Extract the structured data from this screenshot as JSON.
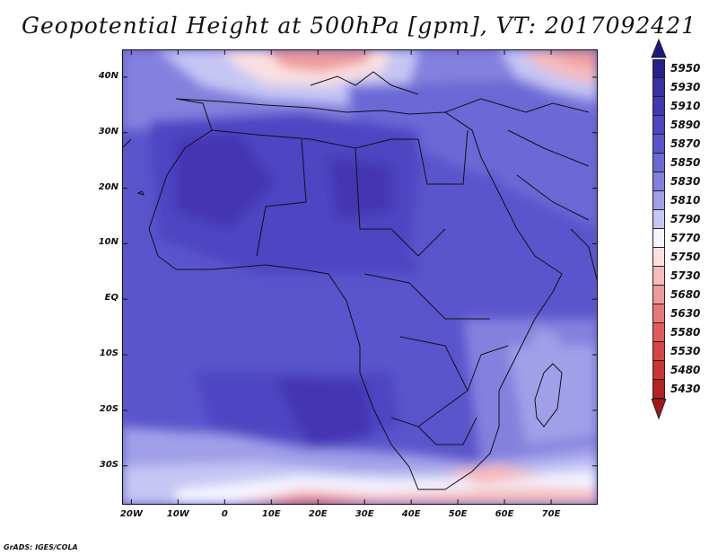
{
  "title": "Geopotential Height at 500hPa [gpm], VT: 2017092421",
  "credit": "GrADS: IGES/COLA",
  "map": {
    "lon_range": [
      -22,
      80
    ],
    "lat_range": [
      -37,
      45
    ],
    "lat_ticks": [
      {
        "lat": 40,
        "label": "40N"
      },
      {
        "lat": 30,
        "label": "30N"
      },
      {
        "lat": 20,
        "label": "20N"
      },
      {
        "lat": 10,
        "label": "10N"
      },
      {
        "lat": 0,
        "label": "EQ"
      },
      {
        "lat": -10,
        "label": "10S"
      },
      {
        "lat": -20,
        "label": "20S"
      },
      {
        "lat": -30,
        "label": "30S"
      }
    ],
    "lon_ticks": [
      {
        "lon": -20,
        "label": "20W"
      },
      {
        "lon": -10,
        "label": "10W"
      },
      {
        "lon": 0,
        "label": "0"
      },
      {
        "lon": 10,
        "label": "10E"
      },
      {
        "lon": 20,
        "label": "20E"
      },
      {
        "lon": 30,
        "label": "30E"
      },
      {
        "lon": 40,
        "label": "40E"
      },
      {
        "lon": 50,
        "label": "50E"
      },
      {
        "lon": 60,
        "label": "60E"
      },
      {
        "lon": 70,
        "label": "70E"
      }
    ]
  },
  "colorbar": {
    "levels": [
      {
        "label": "5950",
        "color": "#2b1f8e"
      },
      {
        "label": "5930",
        "color": "#3a2fa3"
      },
      {
        "label": "5910",
        "color": "#4436b3"
      },
      {
        "label": "5890",
        "color": "#4e45c2"
      },
      {
        "label": "5870",
        "color": "#5a55cc"
      },
      {
        "label": "5850",
        "color": "#6b69d6"
      },
      {
        "label": "5830",
        "color": "#8480de"
      },
      {
        "label": "5810",
        "color": "#a19fe8"
      },
      {
        "label": "5790",
        "color": "#c6c6f4"
      },
      {
        "label": "5770",
        "color": "#f4f4ff"
      },
      {
        "label": "5750",
        "color": "#fbe0df"
      },
      {
        "label": "5730",
        "color": "#f5bcbc"
      },
      {
        "label": "5680",
        "color": "#ef9a9a"
      },
      {
        "label": "5630",
        "color": "#e87878"
      },
      {
        "label": "5580",
        "color": "#e25b5b"
      },
      {
        "label": "5530",
        "color": "#d94545"
      },
      {
        "label": "5480",
        "color": "#cc3333"
      },
      {
        "label": "5430",
        "color": "#b52222"
      }
    ],
    "top_arrow_color": "#1f1780",
    "bottom_arrow_color": "#a01818"
  }
}
